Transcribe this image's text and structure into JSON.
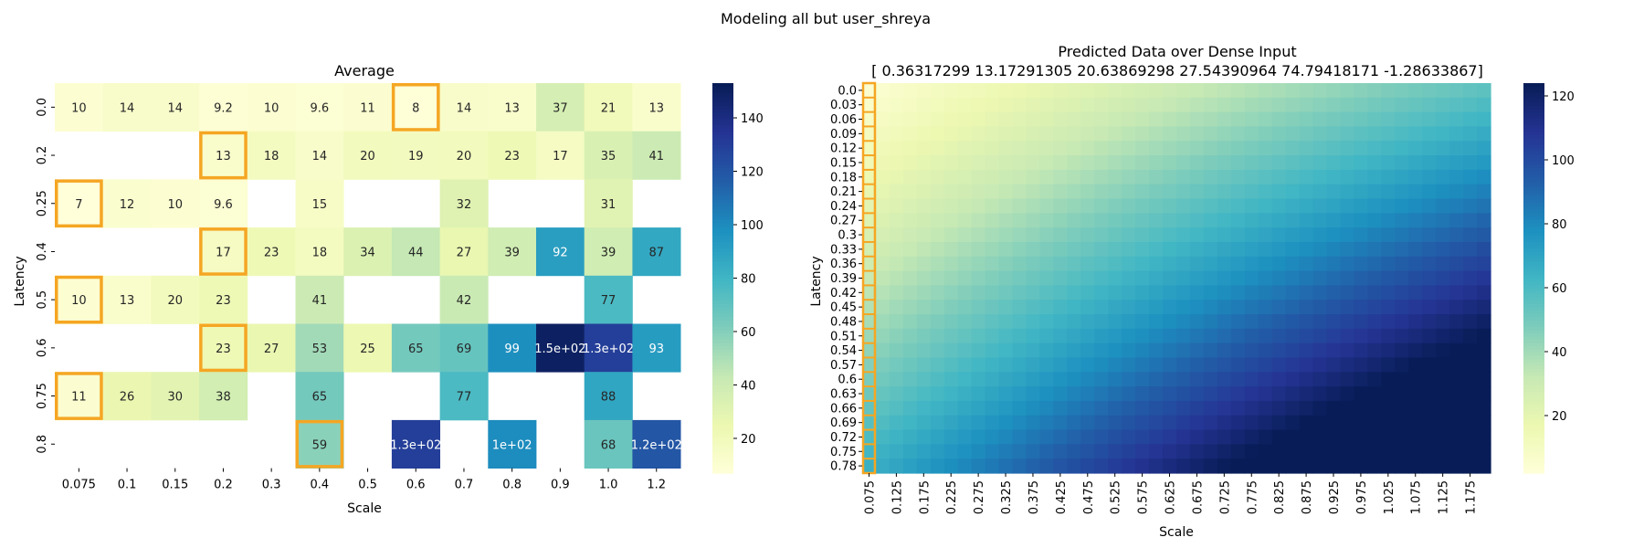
{
  "suptitle": "Modeling all but user_shreya",
  "chart_data": [
    {
      "type": "heatmap",
      "title": "Average",
      "xlabel": "Scale",
      "ylabel": "Latency",
      "x_categories": [
        "0.075",
        "0.1",
        "0.15",
        "0.2",
        "0.3",
        "0.4",
        "0.5",
        "0.6",
        "0.7",
        "0.8",
        "0.9",
        "1.0",
        "1.2"
      ],
      "y_categories": [
        "0.0",
        "0.2",
        "0.25",
        "0.4",
        "0.5",
        "0.6",
        "0.75",
        "0.8"
      ],
      "cells": [
        [
          10,
          14,
          14,
          9.2,
          10,
          9.6,
          11,
          8,
          14,
          13,
          37,
          21,
          13
        ],
        [
          null,
          null,
          null,
          13,
          18,
          14,
          20,
          19,
          20,
          23,
          17,
          35,
          41
        ],
        [
          7,
          12,
          10,
          9.6,
          null,
          15,
          null,
          null,
          32,
          null,
          null,
          31,
          null
        ],
        [
          null,
          null,
          null,
          17,
          23,
          18,
          34,
          44,
          27,
          39,
          92,
          39,
          87
        ],
        [
          10,
          13,
          20,
          23,
          null,
          41,
          null,
          null,
          42,
          null,
          null,
          77,
          null
        ],
        [
          null,
          null,
          null,
          23,
          27,
          53,
          25,
          65,
          69,
          99,
          150,
          130,
          93
        ],
        [
          11,
          26,
          30,
          38,
          null,
          65,
          null,
          null,
          77,
          null,
          null,
          88,
          null
        ],
        [
          null,
          null,
          null,
          null,
          null,
          59,
          null,
          130,
          null,
          100,
          null,
          68,
          120
        ]
      ],
      "cell_labels": [
        [
          "10",
          "14",
          "14",
          "9.2",
          "10",
          "9.6",
          "11",
          "8",
          "14",
          "13",
          "37",
          "21",
          "13"
        ],
        [
          "",
          "",
          "",
          "13",
          "18",
          "14",
          "20",
          "19",
          "20",
          "23",
          "17",
          "35",
          "41"
        ],
        [
          "7",
          "12",
          "10",
          "9.6",
          "",
          "15",
          "",
          "",
          "32",
          "",
          "",
          "31",
          ""
        ],
        [
          "",
          "",
          "",
          "17",
          "23",
          "18",
          "34",
          "44",
          "27",
          "39",
          "92",
          "39",
          "87"
        ],
        [
          "10",
          "13",
          "20",
          "23",
          "",
          "41",
          "",
          "",
          "42",
          "",
          "",
          "77",
          ""
        ],
        [
          "",
          "",
          "",
          "23",
          "27",
          "53",
          "25",
          "65",
          "69",
          "99",
          "1.5e+02",
          "1.3e+02",
          "93"
        ],
        [
          "11",
          "26",
          "30",
          "38",
          "",
          "65",
          "",
          "",
          "77",
          "",
          "",
          "88",
          ""
        ],
        [
          "",
          "",
          "",
          "",
          "",
          "59",
          "",
          "1.3e+02",
          "",
          "1e+02",
          "",
          "68",
          "1.2e+02"
        ]
      ],
      "highlighted_cells": [
        [
          0,
          7
        ],
        [
          1,
          3
        ],
        [
          2,
          0
        ],
        [
          3,
          3
        ],
        [
          4,
          0
        ],
        [
          5,
          3
        ],
        [
          6,
          0
        ],
        [
          7,
          5
        ]
      ],
      "colorbar": {
        "vmin": 7,
        "vmax": 153,
        "ticks": [
          20,
          40,
          60,
          80,
          100,
          120,
          140
        ]
      },
      "colormap": "YlGnBu",
      "highlight_color": "#f5a623"
    },
    {
      "type": "heatmap",
      "title": "Predicted Data over Dense Input",
      "subtitle": "[ 0.36317299 13.17291305 20.63869298 27.54390964 74.79418171 -1.28633867]",
      "xlabel": "Scale",
      "ylabel": "Latency",
      "x_tick_labels": [
        "0.075",
        "0.125",
        "0.175",
        "0.225",
        "0.275",
        "0.325",
        "0.375",
        "0.425",
        "0.475",
        "0.525",
        "0.575",
        "0.625",
        "0.675",
        "0.725",
        "0.775",
        "0.825",
        "0.875",
        "0.925",
        "0.975",
        "1.025",
        "1.075",
        "1.125",
        "1.175"
      ],
      "y_tick_labels": [
        "0.0",
        "0.03",
        "0.06",
        "0.09",
        "0.12",
        "0.15",
        "0.18",
        "0.21",
        "0.24",
        "0.27",
        "0.3",
        "0.33",
        "0.36",
        "0.39",
        "0.42",
        "0.45",
        "0.48",
        "0.51",
        "0.54",
        "0.57",
        "0.6",
        "0.63",
        "0.66",
        "0.69",
        "0.72",
        "0.75",
        "0.78"
      ],
      "x_range": [
        0.075,
        1.2
      ],
      "y_range": [
        0.0,
        0.8
      ],
      "colorbar": {
        "vmin": 2,
        "vmax": 124,
        "ticks": [
          20,
          40,
          60,
          80,
          100,
          120
        ]
      },
      "colormap": "YlGnBu",
      "highlighted_column": "0.075",
      "highlight_color": "#f5a623"
    }
  ]
}
